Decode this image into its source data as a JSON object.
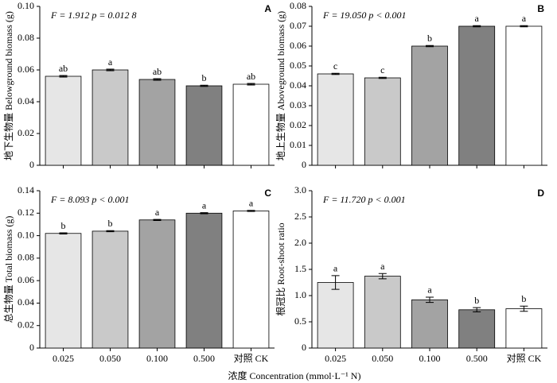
{
  "x_label": "浓度 Concentration (mmol·L⁻¹ N)",
  "categories": [
    "0.025",
    "0.050",
    "0.100",
    "0.500",
    "对照 CK"
  ],
  "colors": [
    "#e6e6e6",
    "#c9c9c9",
    "#a3a3a3",
    "#808080",
    "#ffffff"
  ],
  "chart_data": [
    {
      "type": "bar",
      "panel": "A",
      "stat": "F = 1.912  p = 0.012 8",
      "y_label": "地下生物量 Belowground biomass (g)",
      "values": [
        0.056,
        0.06,
        0.054,
        0.05,
        0.051
      ],
      "errors": [
        0.0005,
        0.0005,
        0.0005,
        0.0004,
        0.0005
      ],
      "letters": [
        "ab",
        "a",
        "ab",
        "b",
        "ab"
      ],
      "ylim": [
        0,
        0.1
      ],
      "yticks": [
        0,
        0.02,
        0.04,
        0.06,
        0.08,
        {
          "value": 0.1,
          "label": "0.10"
        }
      ]
    },
    {
      "type": "bar",
      "panel": "B",
      "stat": "F = 19.050  p < 0.001",
      "y_label": "地上生物量 Aboveground biomass (g)",
      "values": [
        0.046,
        0.044,
        0.06,
        0.07,
        0.07
      ],
      "errors": [
        0.0003,
        0.0003,
        0.0003,
        0.0003,
        0.0003
      ],
      "letters": [
        "c",
        "c",
        "b",
        "a",
        "a"
      ],
      "ylim": [
        0,
        0.08
      ],
      "yticks": [
        0,
        0.01,
        0.02,
        0.03,
        0.04,
        0.05,
        0.06,
        0.07,
        0.08
      ]
    },
    {
      "type": "bar",
      "panel": "C",
      "stat": "F = 8.093  p < 0.001",
      "y_label": "总生物量 Total biomass (g)",
      "values": [
        0.102,
        0.104,
        0.114,
        0.12,
        0.122
      ],
      "errors": [
        0.0005,
        0.0005,
        0.0005,
        0.0005,
        0.0005
      ],
      "letters": [
        "b",
        "b",
        "a",
        "a",
        "a"
      ],
      "ylim": [
        0,
        0.14
      ],
      "yticks": [
        0,
        0.02,
        0.04,
        0.06,
        0.08,
        {
          "value": 0.1,
          "label": "0.10"
        },
        0.12,
        0.14
      ]
    },
    {
      "type": "bar",
      "panel": "D",
      "stat": "F = 11.720  p < 0.001",
      "y_label": "根冠比 Root-shoot ratio",
      "values": [
        1.25,
        1.37,
        0.92,
        0.73,
        0.75
      ],
      "errors": [
        0.13,
        0.05,
        0.05,
        0.04,
        0.05
      ],
      "letters": [
        "a",
        "a",
        "a",
        "b",
        "b"
      ],
      "ylim": [
        0,
        3
      ],
      "yticks": [
        0,
        0.5,
        {
          "value": 1,
          "label": "1.0"
        },
        1.5,
        {
          "value": 2,
          "label": "2.0"
        },
        2.5,
        {
          "value": 3,
          "label": "3.0"
        }
      ]
    }
  ]
}
